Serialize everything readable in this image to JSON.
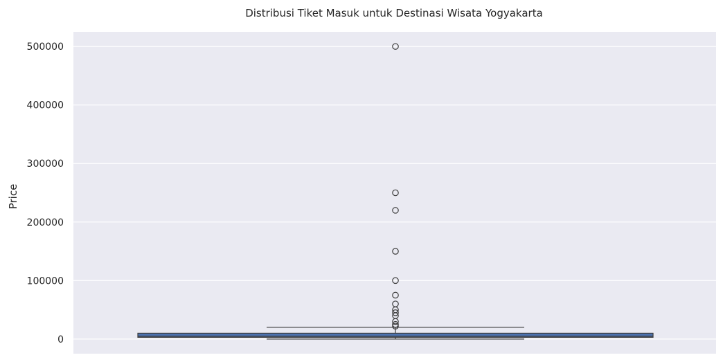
{
  "chart_data": {
    "type": "box",
    "title": "Distribusi Tiket Masuk untuk Destinasi Wisata Yogyakarta",
    "xlabel": "",
    "ylabel": "Price",
    "ylim": [
      -25000,
      525000
    ],
    "yticks": [
      0,
      100000,
      200000,
      300000,
      400000,
      500000
    ],
    "ytick_labels": [
      "0",
      "100000",
      "200000",
      "300000",
      "400000",
      "500000"
    ],
    "grid": true,
    "box": {
      "q1": 3000,
      "median": 5000,
      "q3": 10000,
      "whisker_low": 0,
      "whisker_high": 20000,
      "color": "#4c72b0"
    },
    "outliers": [
      500000,
      250000,
      220000,
      150000,
      100000,
      75000,
      60000,
      50000,
      45000,
      40000,
      30000,
      25000,
      22000
    ],
    "colors": {
      "background": "#eaeaf2",
      "grid": "#ffffff",
      "line": "#3d3d3d"
    }
  }
}
